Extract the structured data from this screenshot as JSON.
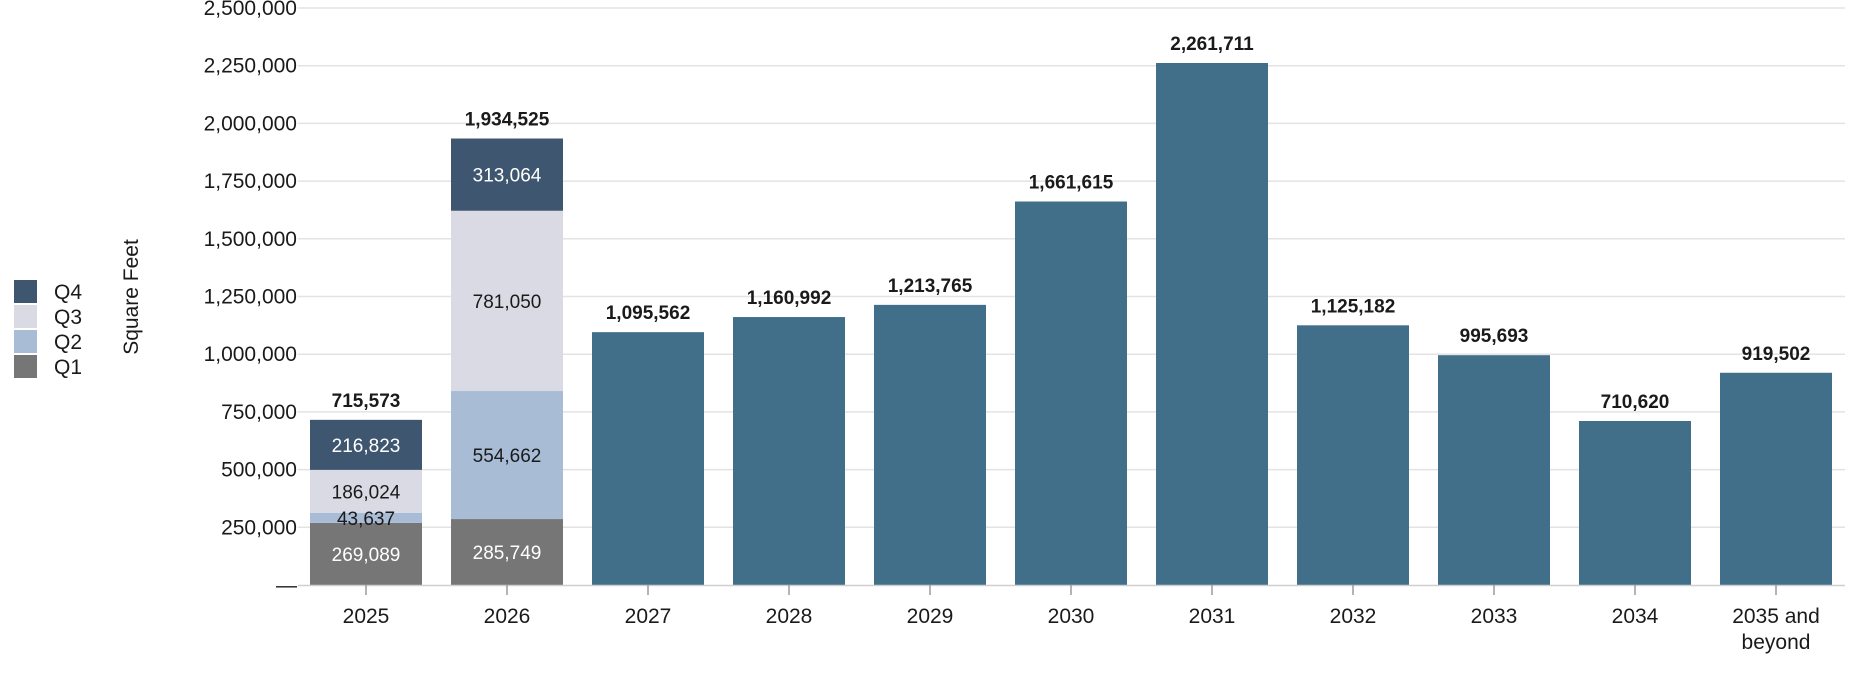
{
  "chart_data": {
    "type": "bar",
    "ylabel": "Square Feet",
    "ylim": [
      0,
      2500000
    ],
    "y_ticks": [
      {
        "value": 0,
        "label": "—"
      },
      {
        "value": 250000,
        "label": "250,000"
      },
      {
        "value": 500000,
        "label": "500,000"
      },
      {
        "value": 750000,
        "label": "750,000"
      },
      {
        "value": 1000000,
        "label": "1,000,000"
      },
      {
        "value": 1250000,
        "label": "1,250,000"
      },
      {
        "value": 1500000,
        "label": "1,500,000"
      },
      {
        "value": 1750000,
        "label": "1,750,000"
      },
      {
        "value": 2000000,
        "label": "2,000,000"
      },
      {
        "value": 2250000,
        "label": "2,250,000"
      },
      {
        "value": 2500000,
        "label": "2,500,000"
      }
    ],
    "grid": true,
    "legend_position": "left",
    "categories": [
      "2025",
      "2026",
      "2027",
      "2028",
      "2029",
      "2030",
      "2031",
      "2032",
      "2033",
      "2034",
      "2035 and beyond"
    ],
    "totals": [
      715573,
      1934525,
      1095562,
      1160992,
      1213765,
      1661615,
      2261711,
      1125182,
      995693,
      710620,
      919502
    ],
    "total_labels": [
      "715,573",
      "1,934,525",
      "1,095,562",
      "1,160,992",
      "1,213,765",
      "1,661,615",
      "2,261,711",
      "1,125,182",
      "995,693",
      "710,620",
      "919,502"
    ],
    "series": [
      {
        "name": "Q1",
        "color": "#767676",
        "label_color": "#ffffff",
        "values": [
          269089,
          285749,
          null,
          null,
          null,
          null,
          null,
          null,
          null,
          null,
          null
        ],
        "labels": [
          "269,089",
          "285,749",
          null,
          null,
          null,
          null,
          null,
          null,
          null,
          null,
          null
        ]
      },
      {
        "name": "Q2",
        "color": "#a8bcd6",
        "label_color": "#1a1a1a",
        "values": [
          43637,
          554662,
          null,
          null,
          null,
          null,
          null,
          null,
          null,
          null,
          null
        ],
        "labels": [
          "43,637",
          "554,662",
          null,
          null,
          null,
          null,
          null,
          null,
          null,
          null,
          null
        ]
      },
      {
        "name": "Q3",
        "color": "#d9dae4",
        "label_color": "#1a1a1a",
        "values": [
          186024,
          781050,
          null,
          null,
          null,
          null,
          null,
          null,
          null,
          null,
          null
        ],
        "labels": [
          "186,024",
          "781,050",
          null,
          null,
          null,
          null,
          null,
          null,
          null,
          null,
          null
        ]
      },
      {
        "name": "Q4",
        "color": "#3e5670",
        "label_color": "#ffffff",
        "values": [
          216823,
          313064,
          null,
          null,
          null,
          null,
          null,
          null,
          null,
          null,
          null
        ],
        "labels": [
          "216,823",
          "313,064",
          null,
          null,
          null,
          null,
          null,
          null,
          null,
          null,
          null
        ]
      }
    ],
    "annual_color": "#416f8a",
    "legend": [
      "Q4",
      "Q3",
      "Q2",
      "Q1"
    ]
  }
}
